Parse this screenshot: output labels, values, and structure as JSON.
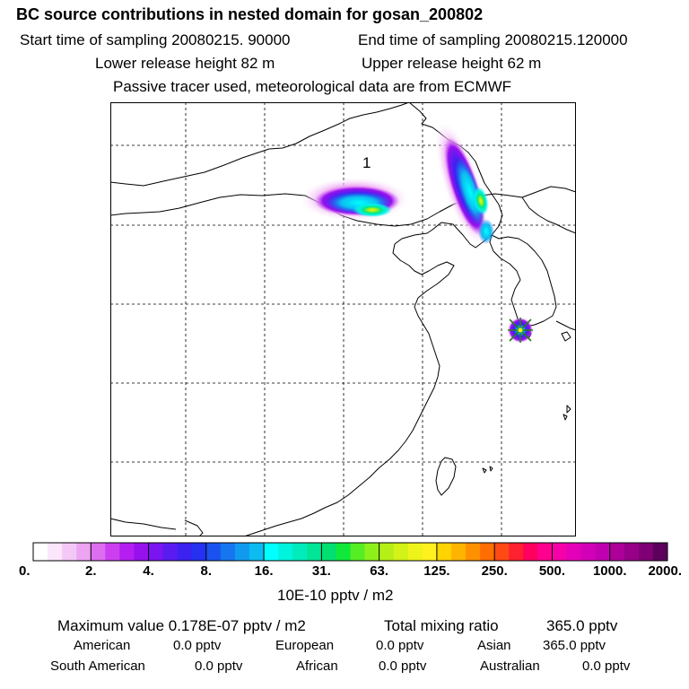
{
  "header": {
    "title": "BC  source contributions in nested domain for gosan_200802",
    "start_time": "Start time of sampling 20080215. 90000",
    "end_time": "End time of sampling 20080215.120000",
    "lower_height": "Lower release height   82 m",
    "upper_height": "Upper release height   62 m",
    "note": "Passive tracer used, meteorological data are from ECMWF"
  },
  "colors": {
    "map_line": "#000000",
    "marker": "#2a7d1b"
  },
  "chart_data": {
    "type": "heatmap",
    "map_label": "1",
    "colorbar_unit": "10E-10 pptv / m2",
    "colorbar_ticks": [
      "0.",
      "2.",
      "4.",
      "8.",
      "16.",
      "31.",
      "63.",
      "125.",
      "250.",
      "500.",
      "1000.",
      "2000."
    ],
    "colorbar_colors": [
      "#ffffff",
      "#fbe6fb",
      "#f4c8f6",
      "#eda4f3",
      "#dd6ef0",
      "#cc3ff0",
      "#b41ef0",
      "#9611ee",
      "#7a14f0",
      "#5a1bf0",
      "#3c22f0",
      "#2431f0",
      "#1a52f0",
      "#1676f0",
      "#0f9af0",
      "#0cbcf0",
      "#00ffff",
      "#00f3dd",
      "#00ecbb",
      "#00e596",
      "#00e070",
      "#10e83c",
      "#55ee22",
      "#8ef01a",
      "#b4f018",
      "#d2f218",
      "#eef41a",
      "#fff020",
      "#ffd400",
      "#ffb400",
      "#ff9000",
      "#ff6e00",
      "#ff4a14",
      "#ff2030",
      "#ff0060",
      "#ff0090",
      "#f600a8",
      "#e400b8",
      "#d200b8",
      "#c000b0",
      "#ac0098",
      "#960088",
      "#7e0074",
      "#5c005c"
    ],
    "plumes": [
      {
        "name": "plume-west",
        "max_level": 125
      },
      {
        "name": "plume-north",
        "max_level": 125
      }
    ],
    "receptor": {
      "name": "gosan",
      "max_level": 63
    }
  },
  "stats": {
    "max_value": "Maximum value  0.178E-07 pptv / m2",
    "total_mixing": "Total mixing ratio",
    "total_value": "365.0 pptv",
    "rows": [
      [
        {
          "label": "American",
          "value": "0.0 pptv"
        },
        {
          "label": "European",
          "value": "0.0 pptv"
        },
        {
          "label": "Asian",
          "value": "365.0 pptv"
        }
      ],
      [
        {
          "label": "South American",
          "value": "0.0 pptv"
        },
        {
          "label": "African",
          "value": "0.0 pptv"
        },
        {
          "label": "Australian",
          "value": "0.0 pptv"
        }
      ]
    ]
  }
}
